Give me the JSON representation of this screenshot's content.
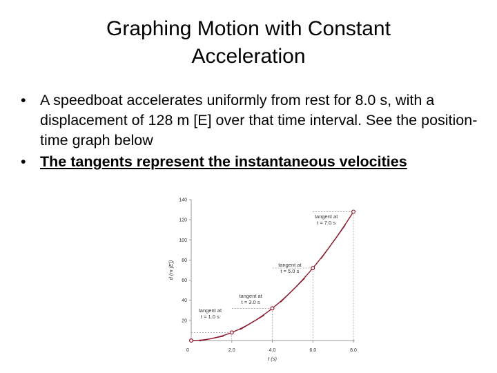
{
  "slide": {
    "title_line1": "Graphing Motion with Constant",
    "title_line2": "Acceleration",
    "bullets": [
      "A speedboat accelerates uniformly from rest for 8.0 s, with a displacement of 128 m [E] over that time interval.  See the position-time graph below",
      "The tangents represent the instantaneous velocities"
    ],
    "bullet_symbol": "•"
  },
  "chart_data": {
    "type": "line",
    "xlabel": "t (s)",
    "ylabel": "d (m [E])",
    "x_ticks": [
      "0",
      "2.0",
      "4.0",
      "6.0",
      "8.0"
    ],
    "y_ticks": [
      "20",
      "40",
      "60",
      "80",
      "100",
      "120",
      "140"
    ],
    "xlim": [
      0,
      8
    ],
    "ylim": [
      0,
      140
    ],
    "grid": false,
    "series": [
      {
        "x": [
          0,
          2,
          4,
          6,
          8
        ],
        "y": [
          0,
          8,
          32,
          72,
          128
        ]
      }
    ],
    "annotations": [
      {
        "line1": "tangent at",
        "line2": "t = 1.0 s",
        "at": 1
      },
      {
        "line1": "tangent at",
        "line2": "t = 3.0 s",
        "at": 3
      },
      {
        "line1": "tangent at",
        "line2": "t = 5.0 s",
        "at": 5
      },
      {
        "line1": "tangent at",
        "line2": "t = 7.0 s",
        "at": 7
      }
    ],
    "colors": {
      "curve": "#8b1a2b",
      "tangent": "#8b1a2b",
      "guide": "#888888",
      "axis": "#999999"
    }
  }
}
